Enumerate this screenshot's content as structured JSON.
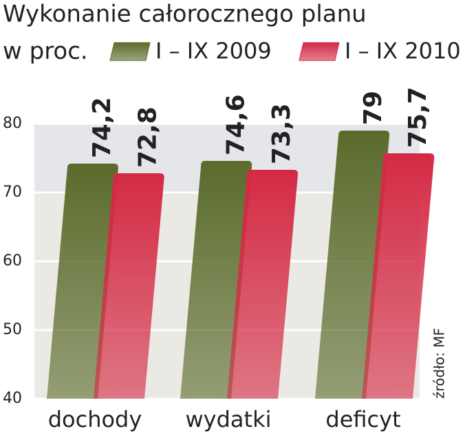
{
  "chart_data": {
    "type": "bar",
    "title": "Wykonanie całorocznego planu",
    "subtitle": "w proc.",
    "source": "źródło: MF",
    "categories": [
      "dochody",
      "wydatki",
      "deficyt"
    ],
    "series": [
      {
        "name": "I – IX 2009",
        "color": "#5b6b2c",
        "values": [
          74.2,
          74.6,
          79
        ],
        "value_labels": [
          "74,2",
          "74,6",
          "79"
        ]
      },
      {
        "name": "I – IX 2010",
        "color": "#d42a44",
        "values": [
          72.8,
          73.3,
          75.7
        ],
        "value_labels": [
          "72,8",
          "73,3",
          "75,7"
        ]
      }
    ],
    "ylim": [
      40,
      80
    ],
    "yticks": [
      40,
      50,
      60,
      70,
      80
    ],
    "grid": true
  }
}
